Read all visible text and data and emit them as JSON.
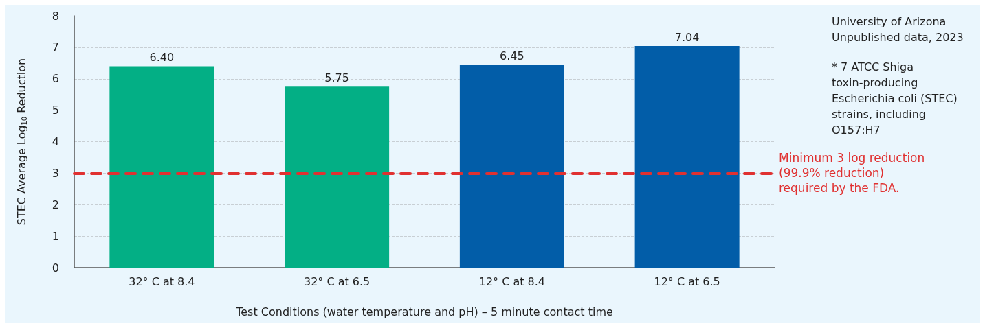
{
  "chart_data": {
    "type": "bar",
    "xlabel": "Test Conditions (water temperature and pH) – 5 minute contact time",
    "ylabel": "STEC Average Log$_{10}$ Reduction",
    "categories": [
      "32° C at 8.4",
      "32° C at 6.5",
      "12° C at 8.4",
      "12° C at 6.5"
    ],
    "values": [
      6.4,
      5.75,
      6.45,
      7.04
    ],
    "value_labels": [
      "6.40",
      "5.75",
      "6.45",
      "7.04"
    ],
    "colors": [
      "#03af85",
      "#03af85",
      "#025da8",
      "#025da8"
    ],
    "ylim": [
      0,
      8
    ],
    "yticks": [
      0,
      1,
      2,
      3,
      4,
      5,
      6,
      7,
      8
    ],
    "grid": "y",
    "ref_lines": [
      {
        "axis": "y",
        "value": 3,
        "label": "Minimum 3 log reduction (99.9% reduction) required by the FDA.",
        "color": "#e03131",
        "line_style": "dashed"
      }
    ],
    "annotations": [
      "University of Arizona Unpublished data, 2023",
      "* 7 ATCC Shiga toxin-producing Escherichia coli (STEC) strains, including O157:H7"
    ]
  }
}
